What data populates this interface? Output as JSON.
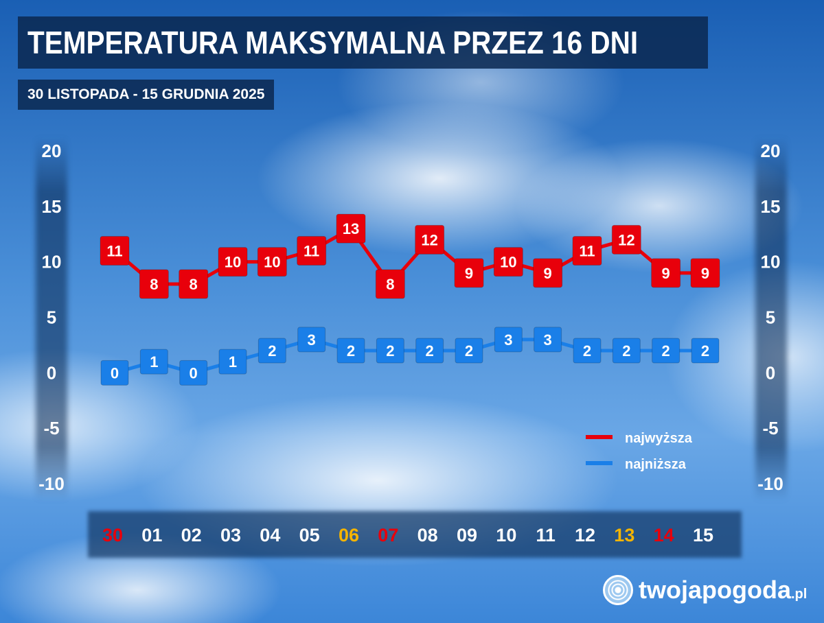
{
  "header": {
    "title": "TEMPERATURA MAKSYMALNA PRZEZ 16 DNI",
    "subtitle": "30 LISTOPADA - 15 GRUDNIA 2025"
  },
  "logo": {
    "name": "twojapogoda",
    "suffix": ".pl"
  },
  "colors": {
    "max": "#e8000b",
    "min": "#1a7fe8",
    "weekend_sat": "#f5b400",
    "weekend_sun": "#e8000b",
    "text": "#ffffff"
  },
  "chart_data": {
    "type": "line",
    "title": "TEMPERATURA MAKSYMALNA PRZEZ 16 DNI",
    "subtitle": "30 LISTOPADA - 15 GRUDNIA 2025",
    "categories": [
      "30",
      "01",
      "02",
      "03",
      "04",
      "05",
      "06",
      "07",
      "08",
      "09",
      "10",
      "11",
      "12",
      "13",
      "14",
      "15"
    ],
    "category_colors": [
      "sun",
      "normal",
      "normal",
      "normal",
      "normal",
      "normal",
      "sat",
      "sun",
      "normal",
      "normal",
      "normal",
      "normal",
      "normal",
      "sat",
      "sun",
      "normal"
    ],
    "series": [
      {
        "name": "najwyższa",
        "color": "#e8000b",
        "values": [
          11,
          8,
          8,
          10,
          10,
          11,
          13,
          8,
          12,
          9,
          10,
          9,
          11,
          12,
          9,
          9
        ]
      },
      {
        "name": "najniższa",
        "color": "#1a7fe8",
        "values": [
          0,
          1,
          0,
          1,
          2,
          3,
          2,
          2,
          2,
          2,
          3,
          3,
          2,
          2,
          2,
          2
        ]
      }
    ],
    "yticks": [
      "20",
      "15",
      "10",
      "5",
      "0",
      "-5",
      "-10"
    ],
    "ylim": [
      -10,
      20
    ],
    "grid": false,
    "legend": "bottom-right"
  }
}
